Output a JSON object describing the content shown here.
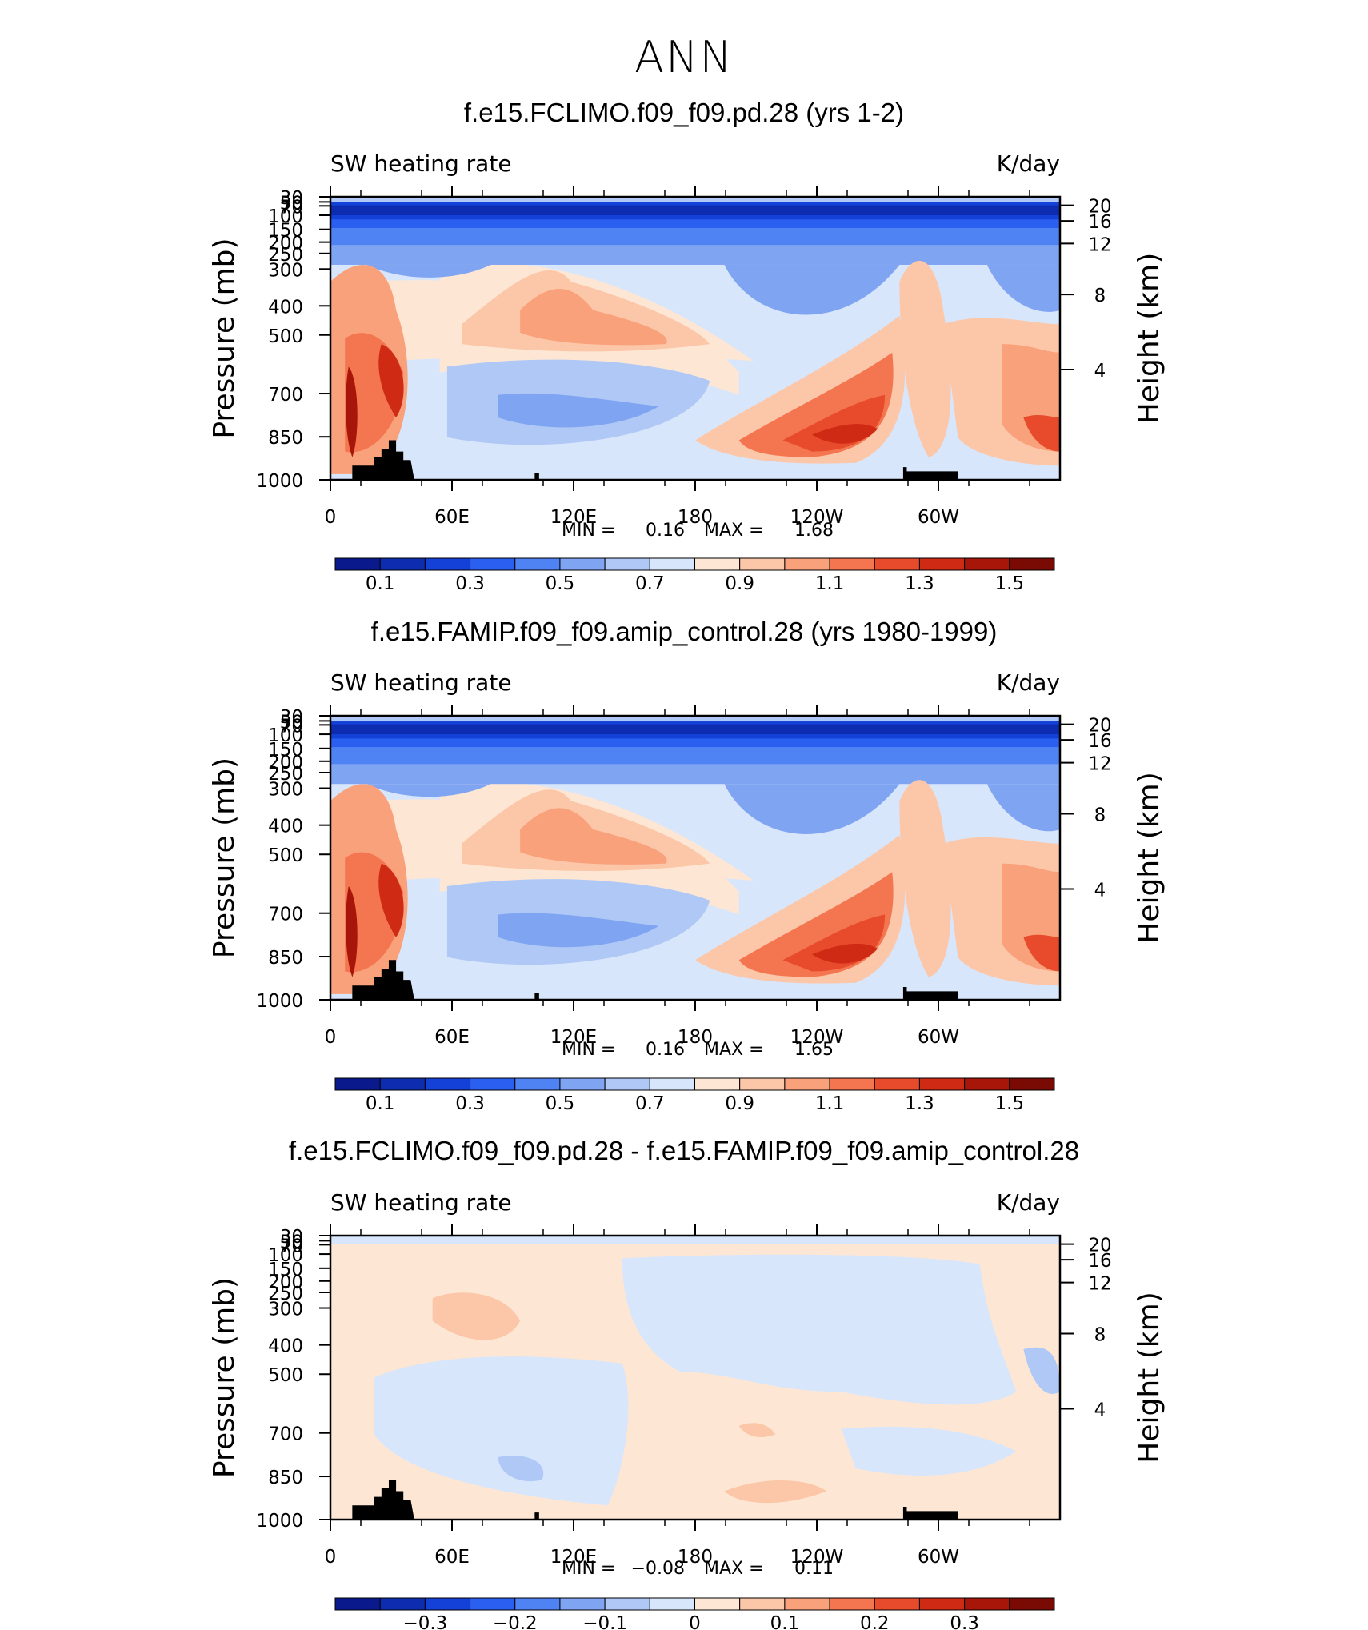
{
  "title": "ANN",
  "chart_data": [
    {
      "type": "heatmap",
      "title": "f.e15.FCLIMO.f09_f09.pd.28 (yrs 1-2)",
      "left_label": "SW heating rate",
      "right_label": "K/day",
      "ylabel": "Pressure (mb)",
      "ylabel_right": "Height (km)",
      "x_ticks": [
        "0",
        "60E",
        "120E",
        "180",
        "120W",
        "60W"
      ],
      "y_ticks": [
        "30",
        "50",
        "70",
        "100",
        "150",
        "200",
        "250",
        "300",
        "400",
        "500",
        "700",
        "850",
        "1000"
      ],
      "y_right_ticks": [
        "20",
        "16",
        "12",
        "8",
        "4"
      ],
      "min_label": "MIN =",
      "min_value": "0.16",
      "max_label": "MAX =",
      "max_value": "1.68",
      "colorbar_labels": [
        "0.1",
        "0.3",
        "0.5",
        "0.7",
        "0.9",
        "1.1",
        "1.3",
        "1.5"
      ],
      "colorbar_colors": [
        "#0a1a8c",
        "#0e2cb0",
        "#1441d8",
        "#2a5ff0",
        "#4f82f2",
        "#7fa4f2",
        "#b0c8f6",
        "#d8e6fb",
        "#fde7d4",
        "#fcc7a8",
        "#f9a17b",
        "#f37651",
        "#e84a2c",
        "#cf2a14",
        "#a8160a",
        "#7a0a04"
      ]
    },
    {
      "type": "heatmap",
      "title": "f.e15.FAMIP.f09_f09.amip_control.28 (yrs 1980-1999)",
      "left_label": "SW heating rate",
      "right_label": "K/day",
      "ylabel": "Pressure (mb)",
      "ylabel_right": "Height (km)",
      "x_ticks": [
        "0",
        "60E",
        "120E",
        "180",
        "120W",
        "60W"
      ],
      "y_ticks": [
        "30",
        "50",
        "70",
        "100",
        "150",
        "200",
        "250",
        "300",
        "400",
        "500",
        "700",
        "850",
        "1000"
      ],
      "y_right_ticks": [
        "20",
        "16",
        "12",
        "8",
        "4"
      ],
      "min_label": "MIN =",
      "min_value": "0.16",
      "max_label": "MAX =",
      "max_value": "1.65",
      "colorbar_labels": [
        "0.1",
        "0.3",
        "0.5",
        "0.7",
        "0.9",
        "1.1",
        "1.3",
        "1.5"
      ],
      "colorbar_colors": [
        "#0a1a8c",
        "#0e2cb0",
        "#1441d8",
        "#2a5ff0",
        "#4f82f2",
        "#7fa4f2",
        "#b0c8f6",
        "#d8e6fb",
        "#fde7d4",
        "#fcc7a8",
        "#f9a17b",
        "#f37651",
        "#e84a2c",
        "#cf2a14",
        "#a8160a",
        "#7a0a04"
      ]
    },
    {
      "type": "heatmap",
      "title": "f.e15.FCLIMO.f09_f09.pd.28 - f.e15.FAMIP.f09_f09.amip_control.28",
      "left_label": "SW heating rate",
      "right_label": "K/day",
      "ylabel": "Pressure (mb)",
      "ylabel_right": "Height (km)",
      "x_ticks": [
        "0",
        "60E",
        "120E",
        "180",
        "120W",
        "60W"
      ],
      "y_ticks": [
        "30",
        "50",
        "70",
        "100",
        "150",
        "200",
        "250",
        "300",
        "400",
        "500",
        "700",
        "850",
        "1000"
      ],
      "y_right_ticks": [
        "20",
        "16",
        "12",
        "8",
        "4"
      ],
      "min_label": "MIN =",
      "min_value": "−0.08",
      "max_label": "MAX =",
      "max_value": "0.11",
      "colorbar_labels": [
        "−0.3",
        "−0.2",
        "−0.1",
        "0",
        "0.1",
        "0.2",
        "0.3"
      ],
      "colorbar_colors": [
        "#0a1a8c",
        "#0e2cb0",
        "#1441d8",
        "#2a5ff0",
        "#4f82f2",
        "#7fa4f2",
        "#b0c8f6",
        "#d8e6fb",
        "#fde7d4",
        "#fcc7a8",
        "#f9a17b",
        "#f37651",
        "#e84a2c",
        "#cf2a14",
        "#a8160a",
        "#7a0a04"
      ]
    }
  ]
}
